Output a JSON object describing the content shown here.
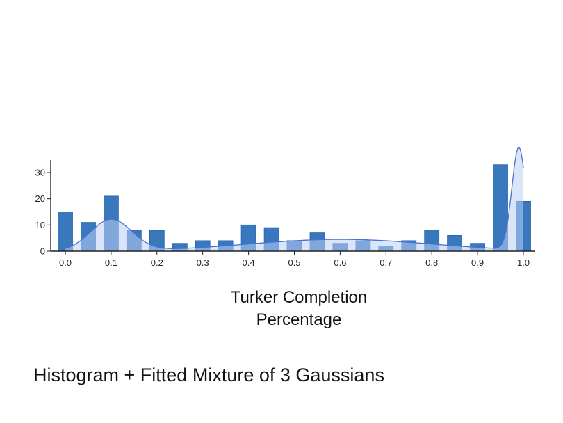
{
  "chart_data": {
    "type": "bar",
    "subtype": "histogram-with-density-overlay",
    "x": [
      0.0,
      0.05,
      0.1,
      0.15,
      0.2,
      0.25,
      0.3,
      0.35,
      0.4,
      0.45,
      0.5,
      0.55,
      0.6,
      0.65,
      0.7,
      0.75,
      0.8,
      0.85,
      0.9,
      0.95,
      1.0
    ],
    "values": [
      15,
      11,
      21,
      8,
      8,
      3,
      4,
      4,
      10,
      9,
      4,
      7,
      3,
      4,
      2,
      4,
      8,
      6,
      3,
      33,
      19
    ],
    "xticks": [
      0.0,
      0.1,
      0.2,
      0.3,
      0.4,
      0.5,
      0.6,
      0.7,
      0.8,
      0.9,
      1.0
    ],
    "xtick_labels": [
      "0.0",
      "0.1",
      "0.2",
      "0.3",
      "0.4",
      "0.5",
      "0.6",
      "0.7",
      "0.8",
      "0.9",
      "1.0"
    ],
    "yticks": [
      0,
      10,
      20,
      30
    ],
    "ytick_labels": [
      "0",
      "10",
      "20",
      "30"
    ],
    "xlim": [
      -0.03,
      1.03
    ],
    "ylim": [
      0,
      35
    ],
    "xlabel_line1": "Turker Completion",
    "xlabel_line2": "Percentage",
    "caption": "Histogram + Fitted Mixture of 3 Gaussians",
    "grid": false,
    "mixture": {
      "components": [
        {
          "mean": 0.1,
          "sd": 0.045,
          "peak": 12
        },
        {
          "mean": 0.6,
          "sd": 0.2,
          "peak": 4.5
        },
        {
          "mean": 0.99,
          "sd": 0.015,
          "peak": 39
        }
      ]
    },
    "colors": {
      "bar": "#3a78bd",
      "bar_stroke": "#2a62a3",
      "curve_line": "#4a6fd6",
      "curve_fill": "#bcd0f5",
      "axis": "#222222"
    }
  }
}
